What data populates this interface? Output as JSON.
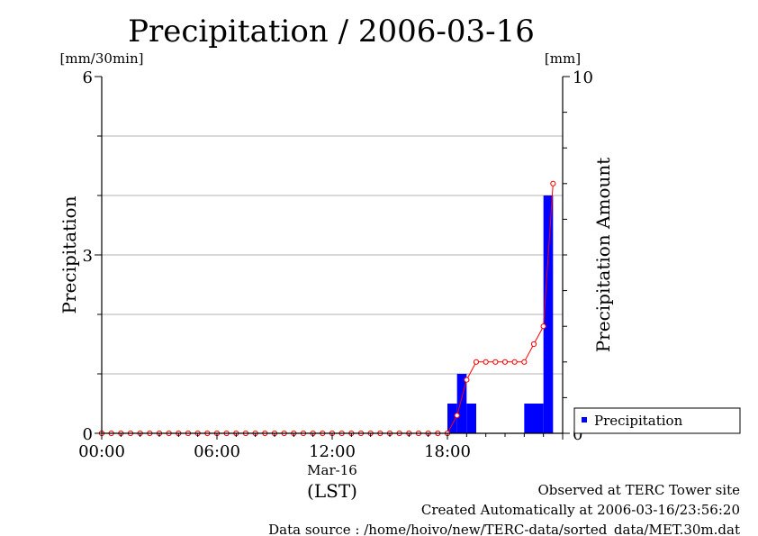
{
  "chart_data": {
    "type": "bar",
    "title": "Precipitation / 2006-03-16",
    "y_left_unit": "[mm/30min]",
    "y_right_unit": "[mm]",
    "ylabel_left": "Precipitation",
    "ylabel_right": "Precipitation Amount",
    "ylim_left": [
      0,
      6
    ],
    "ylim_right": [
      0,
      10
    ],
    "yticks_left": [
      "0",
      "3",
      "6"
    ],
    "yticks_right": [
      "0",
      "10"
    ],
    "xlim_hours": [
      0,
      24
    ],
    "xticks": [
      "00:00",
      "06:00",
      "12:00",
      "18:00"
    ],
    "date_label": "Mar-16",
    "time_zone_label": "(LST)",
    "grid": true,
    "legend_position": "bottom-right",
    "bars": {
      "name": "Precipitation",
      "color": "#0000ff",
      "start_hours": [
        18.0,
        18.5,
        19.0,
        22.0,
        22.5,
        23.0
      ],
      "values": [
        0.5,
        1.0,
        0.5,
        0.5,
        0.5,
        4.0
      ]
    },
    "cumulative": {
      "color": "#ff0000",
      "times": [
        "00:00",
        "00:30",
        "01:00",
        "01:30",
        "02:00",
        "02:30",
        "03:00",
        "03:30",
        "04:00",
        "04:30",
        "05:00",
        "05:30",
        "06:00",
        "06:30",
        "07:00",
        "07:30",
        "08:00",
        "08:30",
        "09:00",
        "09:30",
        "10:00",
        "10:30",
        "11:00",
        "11:30",
        "12:00",
        "12:30",
        "13:00",
        "13:30",
        "14:00",
        "14:30",
        "15:00",
        "15:30",
        "16:00",
        "16:30",
        "17:00",
        "17:30",
        "18:00",
        "18:30",
        "19:00",
        "19:30",
        "20:00",
        "20:30",
        "21:00",
        "21:30",
        "22:00",
        "22:30",
        "23:00",
        "23:30"
      ],
      "values": [
        0,
        0,
        0,
        0,
        0,
        0,
        0,
        0,
        0,
        0,
        0,
        0,
        0,
        0,
        0,
        0,
        0,
        0,
        0,
        0,
        0,
        0,
        0,
        0,
        0,
        0,
        0,
        0,
        0,
        0,
        0,
        0,
        0,
        0,
        0,
        0,
        0,
        0.5,
        1.5,
        2.0,
        2.0,
        2.0,
        2.0,
        2.0,
        2.0,
        2.5,
        3.0,
        7.0
      ]
    }
  },
  "footer": {
    "line1": "Observed at TERC Tower site",
    "line2": "Created Automatically at 2006-03-16/23:56:20",
    "line3": "Data source : /home/hoivo/new/TERC-data/sorted_data/MET.30m.dat"
  }
}
